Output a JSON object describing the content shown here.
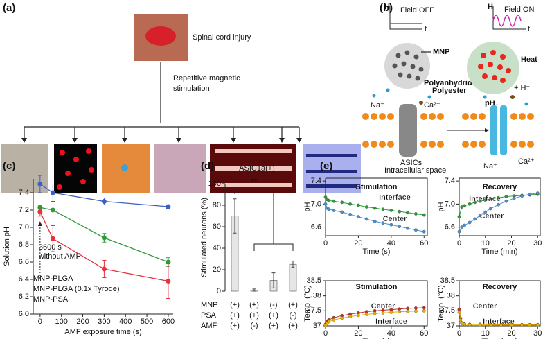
{
  "panels": {
    "a": {
      "label": "(a)",
      "texts": [
        "Spinal cord injury",
        "Repetitive magnetic",
        "stimulation"
      ]
    },
    "b": {
      "label": "(b)",
      "texts": [
        "H",
        "Field OFF",
        "t",
        "H",
        "Field ON",
        "t",
        "MNP",
        "Polyanhydride",
        "Polyester",
        "Heat",
        "Na⁺",
        "Ca²⁺",
        "ASICs",
        "Intracellular space",
        "pH↓",
        "+ H⁺",
        "Na⁺",
        "Ca²⁺"
      ]
    },
    "c": {
      "label": "(c)"
    },
    "d": {
      "label": "(d)"
    },
    "e": {
      "label": "(e)"
    }
  },
  "chart_data": [
    {
      "type": "line",
      "xlabel": "AMF exposure time (s)",
      "ylabel": "Solution pH",
      "x": [
        0,
        60,
        300,
        600
      ],
      "xlim": [
        -32,
        623
      ],
      "xticks": [
        0,
        100,
        200,
        300,
        400,
        500,
        600
      ],
      "ylim": [
        6.0,
        7.56
      ],
      "yticks": [
        {
          "value": 6.0,
          "label": "6.0"
        },
        {
          "value": 6.2,
          "label": "6.2"
        },
        {
          "value": 6.4,
          "label": "6.4"
        },
        {
          "value": 6.6,
          "label": "6.6"
        },
        {
          "value": 6.8,
          "label": "6.8"
        },
        {
          "value": 7.0,
          "label": "7.0"
        },
        {
          "value": 7.2,
          "label": "7.2"
        },
        {
          "value": 7.4,
          "label": "7.4"
        }
      ],
      "annotations": [
        "3600 s",
        "without AMF"
      ],
      "series": [
        {
          "name": "MNP-PLGA",
          "color": "#3d5fc4",
          "values": [
            7.5,
            7.4,
            7.3,
            7.24
          ],
          "errors": [
            0.1,
            0.1,
            0.04,
            0.02
          ]
        },
        {
          "name": "MNP-PLGA (0.1x Tyrode)",
          "color": "#2e9a3a",
          "values": [
            7.23,
            7.2,
            6.88,
            6.6
          ],
          "errors": [
            0.02,
            0.01,
            0.05,
            0.05
          ]
        },
        {
          "name": "MNP-PSA",
          "color": "#e5323c",
          "values": [
            7.18,
            6.87,
            6.52,
            6.38
          ],
          "errors": [
            0.05,
            0.15,
            0.1,
            0.2
          ]
        }
      ]
    },
    {
      "type": "bar",
      "title": "ASIC1a(+)",
      "ylabel": "Stimulated neurons (%)",
      "values": [
        70,
        1,
        10,
        25
      ],
      "errors": [
        16,
        1,
        7,
        3
      ],
      "color": "#e6e6e6",
      "ylim": [
        0,
        100
      ],
      "yticks": [
        0,
        20,
        40,
        60,
        80,
        100
      ],
      "annotations": [
        "**"
      ],
      "conditions": [
        {
          "name": "MNP",
          "values": [
            "(+)",
            "(+)",
            "(-)",
            "(+)"
          ]
        },
        {
          "name": "PSA",
          "values": [
            "(+)",
            "(+)",
            "(+)",
            "(-)"
          ]
        },
        {
          "name": "AMF",
          "values": [
            "(+)",
            "(-)",
            "(+)",
            "(+)"
          ]
        }
      ]
    },
    {
      "type": "line",
      "title": "Stimulation",
      "xlabel": "Time (s)",
      "ylabel": "pH",
      "x": [
        0,
        1,
        2,
        5,
        10,
        15,
        20,
        25,
        30,
        35,
        40,
        45,
        50,
        55,
        60
      ],
      "xlim": [
        0,
        62
      ],
      "xticks": [
        0,
        20,
        40,
        60
      ],
      "ylim": [
        6.45,
        7.45
      ],
      "yticks": [
        6.6,
        {
          "value": 7.0,
          "label": "7.0"
        },
        7.4
      ],
      "series": [
        {
          "name": "Interface",
          "color": "#2e9a3a",
          "values": [
            7.12,
            7.08,
            7.06,
            7.05,
            7.03,
            7.0,
            6.98,
            6.95,
            6.93,
            6.91,
            6.89,
            6.87,
            6.85,
            6.83,
            6.81
          ]
        },
        {
          "name": "Center",
          "color": "#4a8fd0",
          "values": [
            7.0,
            6.93,
            6.91,
            6.89,
            6.86,
            6.82,
            6.78,
            6.74,
            6.7,
            6.67,
            6.64,
            6.61,
            6.58,
            6.55,
            6.52
          ]
        }
      ]
    },
    {
      "type": "line",
      "title": "Recovery",
      "xlabel": "Time (min)",
      "ylabel": "pH",
      "x": [
        0,
        1,
        2,
        4,
        6,
        8,
        10,
        12,
        15,
        18,
        21,
        24,
        27,
        30
      ],
      "xlim": [
        0,
        31
      ],
      "xticks": [
        0,
        10,
        20,
        30
      ],
      "ylim": [
        6.45,
        7.45
      ],
      "yticks": [
        6.6,
        {
          "value": 7.0,
          "label": "7.0"
        },
        7.4
      ],
      "series": [
        {
          "name": "Interface",
          "color": "#2e9a3a",
          "values": [
            6.78,
            6.95,
            6.97,
            7.0,
            7.03,
            7.05,
            7.07,
            7.09,
            7.11,
            7.13,
            7.14,
            7.15,
            7.16,
            7.17
          ]
        },
        {
          "name": "Center",
          "color": "#4a8fd0",
          "values": [
            6.52,
            6.6,
            6.63,
            6.68,
            6.74,
            6.8,
            6.86,
            6.92,
            6.99,
            7.05,
            7.1,
            7.14,
            7.17,
            7.19
          ]
        }
      ]
    },
    {
      "type": "line",
      "title": "Stimulation",
      "xlabel": "Time (s)",
      "ylabel": "Temp. (°C)",
      "x": [
        0,
        1,
        2,
        5,
        10,
        15,
        20,
        25,
        30,
        35,
        40,
        45,
        50,
        55,
        60
      ],
      "xlim": [
        0,
        62
      ],
      "xticks": [
        0,
        20,
        40,
        60
      ],
      "ylim": [
        37,
        38.5
      ],
      "yticks": [
        37,
        37.5,
        38,
        38.5
      ],
      "series": [
        {
          "name": "Center",
          "color": "#c0302a",
          "values": [
            37.05,
            37.15,
            37.2,
            37.27,
            37.34,
            37.39,
            37.43,
            37.47,
            37.5,
            37.52,
            37.54,
            37.56,
            37.58,
            37.59,
            37.6
          ]
        },
        {
          "name": "Interface",
          "color": "#e0b000",
          "values": [
            37.02,
            37.1,
            37.14,
            37.2,
            37.26,
            37.31,
            37.35,
            37.38,
            37.41,
            37.43,
            37.45,
            37.47,
            37.48,
            37.49,
            37.5
          ]
        }
      ]
    },
    {
      "type": "line",
      "title": "Recovery",
      "xlabel": "Time (min)",
      "ylabel": "Temp. (°C)",
      "x": [
        0,
        0.5,
        1,
        2,
        4,
        8,
        12,
        16,
        20,
        24,
        27,
        30
      ],
      "xlim": [
        0,
        31
      ],
      "xticks": [
        0,
        10,
        20,
        30
      ],
      "ylim": [
        37,
        38.5
      ],
      "yticks": [
        37,
        37.5,
        38,
        38.5
      ],
      "series": [
        {
          "name": "Center",
          "color": "#c0302a",
          "values": [
            37.55,
            37.25,
            37.1,
            37.06,
            37.05,
            37.05,
            37.04,
            37.04,
            37.04,
            37.04,
            37.04,
            37.04
          ]
        },
        {
          "name": "Interface",
          "color": "#e0b000",
          "values": [
            37.45,
            37.2,
            37.08,
            37.05,
            37.04,
            37.04,
            37.03,
            37.03,
            37.03,
            37.03,
            37.03,
            37.03
          ]
        }
      ]
    }
  ]
}
